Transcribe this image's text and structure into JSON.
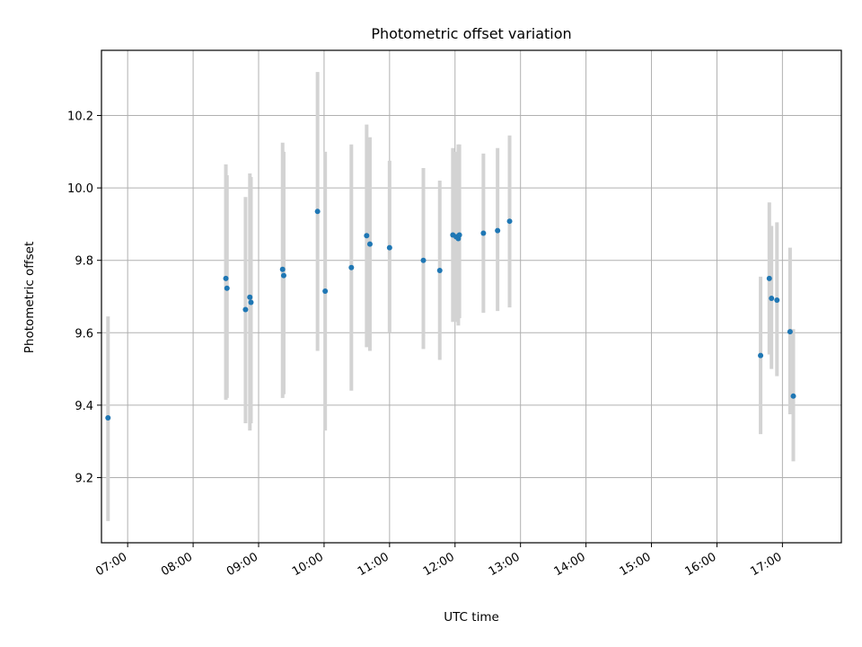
{
  "chart_data": {
    "type": "scatter",
    "title": "Photometric offset variation",
    "xlabel": "UTC time",
    "ylabel": "Photometric offset",
    "xlim": [
      "06:36",
      "17:54"
    ],
    "ylim": [
      9.02,
      10.38
    ],
    "x_ticks": [
      "07:00",
      "08:00",
      "09:00",
      "10:00",
      "11:00",
      "12:00",
      "13:00",
      "14:00",
      "15:00",
      "16:00",
      "17:00"
    ],
    "y_ticks": [
      9.2,
      9.4,
      9.6,
      9.8,
      10.0,
      10.2
    ],
    "grid": true,
    "colors": {
      "point": "#1f77b4",
      "errorbar": "#d3d3d3",
      "grid": "#b0b0b0"
    },
    "points": [
      {
        "time": "06:42",
        "y": 9.365,
        "yerr_low": 9.08,
        "yerr_high": 9.645
      },
      {
        "time": "08:30",
        "y": 9.75,
        "yerr_low": 9.415,
        "yerr_high": 10.065
      },
      {
        "time": "08:31",
        "y": 9.723,
        "yerr_low": 9.42,
        "yerr_high": 10.035
      },
      {
        "time": "08:48",
        "y": 9.664,
        "yerr_low": 9.35,
        "yerr_high": 9.975
      },
      {
        "time": "08:52",
        "y": 9.698,
        "yerr_low": 9.33,
        "yerr_high": 10.04
      },
      {
        "time": "08:53",
        "y": 9.684,
        "yerr_low": 9.35,
        "yerr_high": 10.03
      },
      {
        "time": "09:22",
        "y": 9.775,
        "yerr_low": 9.42,
        "yerr_high": 10.125
      },
      {
        "time": "09:23",
        "y": 9.758,
        "yerr_low": 9.43,
        "yerr_high": 10.1
      },
      {
        "time": "09:54",
        "y": 9.935,
        "yerr_low": 9.55,
        "yerr_high": 10.32
      },
      {
        "time": "10:01",
        "y": 9.715,
        "yerr_low": 9.33,
        "yerr_high": 10.1
      },
      {
        "time": "10:25",
        "y": 9.78,
        "yerr_low": 9.44,
        "yerr_high": 10.12
      },
      {
        "time": "10:39",
        "y": 9.868,
        "yerr_low": 9.56,
        "yerr_high": 10.175
      },
      {
        "time": "10:42",
        "y": 9.845,
        "yerr_low": 9.55,
        "yerr_high": 10.14
      },
      {
        "time": "11:00",
        "y": 9.835,
        "yerr_low": 9.6,
        "yerr_high": 10.075
      },
      {
        "time": "11:31",
        "y": 9.8,
        "yerr_low": 9.555,
        "yerr_high": 10.055
      },
      {
        "time": "11:46",
        "y": 9.772,
        "yerr_low": 9.525,
        "yerr_high": 10.02
      },
      {
        "time": "11:58",
        "y": 9.87,
        "yerr_low": 9.63,
        "yerr_high": 10.11
      },
      {
        "time": "12:01",
        "y": 9.865,
        "yerr_low": 9.63,
        "yerr_high": 10.1
      },
      {
        "time": "12:03",
        "y": 9.86,
        "yerr_low": 9.62,
        "yerr_high": 10.12
      },
      {
        "time": "12:04",
        "y": 9.87,
        "yerr_low": 9.64,
        "yerr_high": 10.12
      },
      {
        "time": "12:26",
        "y": 9.875,
        "yerr_low": 9.655,
        "yerr_high": 10.095
      },
      {
        "time": "12:39",
        "y": 9.882,
        "yerr_low": 9.66,
        "yerr_high": 10.11
      },
      {
        "time": "12:50",
        "y": 9.908,
        "yerr_low": 9.67,
        "yerr_high": 10.145
      },
      {
        "time": "16:40",
        "y": 9.537,
        "yerr_low": 9.32,
        "yerr_high": 9.755
      },
      {
        "time": "16:48",
        "y": 9.75,
        "yerr_low": 9.54,
        "yerr_high": 9.96
      },
      {
        "time": "16:50",
        "y": 9.695,
        "yerr_low": 9.5,
        "yerr_high": 9.895
      },
      {
        "time": "16:55",
        "y": 9.69,
        "yerr_low": 9.48,
        "yerr_high": 9.905
      },
      {
        "time": "17:07",
        "y": 9.603,
        "yerr_low": 9.375,
        "yerr_high": 9.835
      },
      {
        "time": "17:10",
        "y": 9.425,
        "yerr_low": 9.245,
        "yerr_high": 9.61
      }
    ]
  }
}
